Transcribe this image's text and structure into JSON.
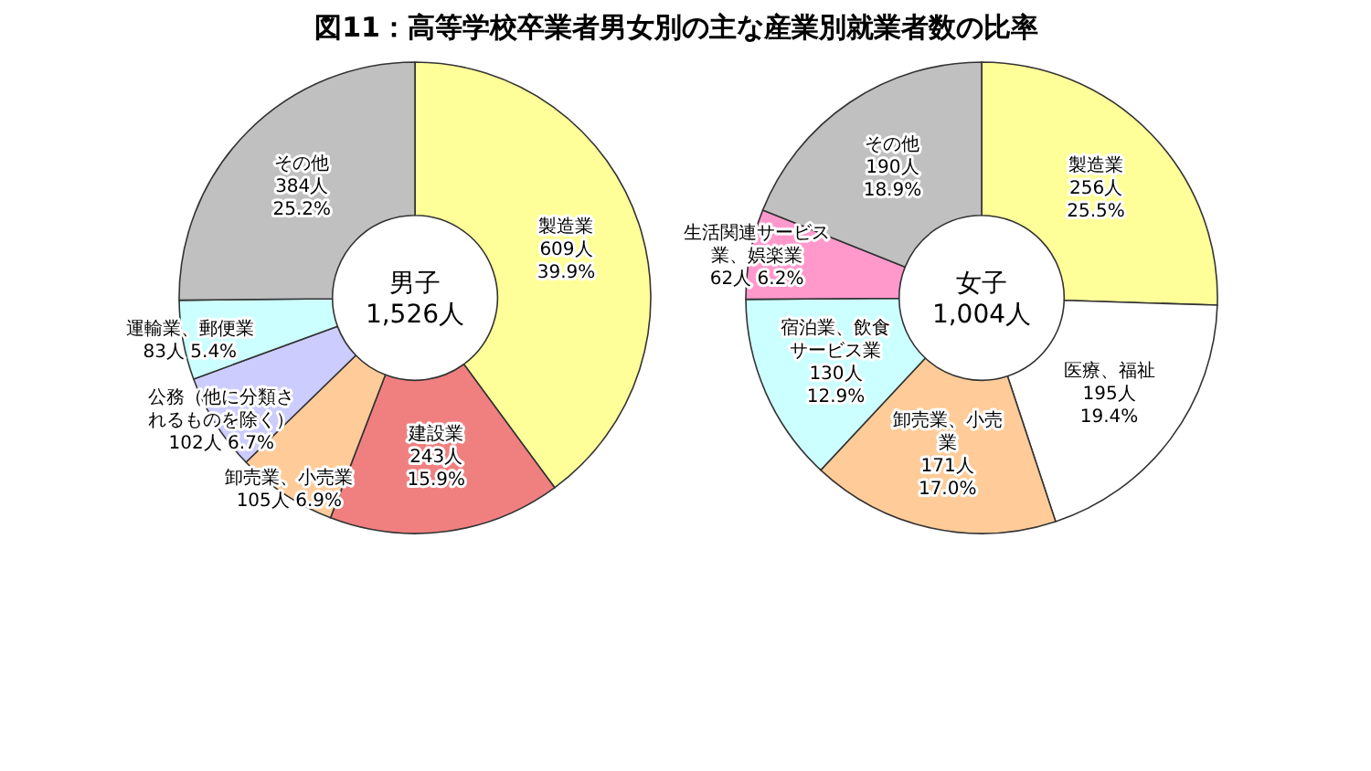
{
  "chart_data": [
    {
      "type": "donut",
      "title": "図11：高等学校卒業者男女別の主な産業別就業者数の比率",
      "categories": [
        "製造業",
        "建設業",
        "卸売業、小売業",
        "公務（他に分類されるものを除く）",
        "運輸業、郵便業",
        "その他"
      ],
      "values": [
        609,
        243,
        105,
        102,
        83,
        384
      ],
      "colors": [
        "#ffff99",
        "#f08080",
        "#ffcc99",
        "#ccccff",
        "#ccffff",
        "#c0c0c0"
      ],
      "value_labels": [
        "609人 39.9%",
        "243人 15.9%",
        "105人 6.9%",
        "102人 6.7%",
        "83人 5.4%",
        "384人 25.2%"
      ],
      "annotations": [
        "男子",
        "1,526人"
      ]
    },
    {
      "type": "donut",
      "categories": [
        "製造業",
        "医療、福祉",
        "卸売業、小売業",
        "宿泊業、飲食サービス業",
        "生活関連サービス業、娯楽業",
        "その他"
      ],
      "values": [
        256,
        195,
        171,
        130,
        62,
        190
      ],
      "colors": [
        "#ffff99",
        "#ffffff",
        "#ffcc99",
        "#ccffff",
        "#ff99cc",
        "#c0c0c0"
      ],
      "value_labels": [
        "256人 25.5%",
        "195人 19.4%",
        "171人 17.0%",
        "130人 12.9%",
        "62人 6.2%",
        "190人 18.9%"
      ],
      "annotations": [
        "女子",
        "1,004人"
      ]
    }
  ]
}
